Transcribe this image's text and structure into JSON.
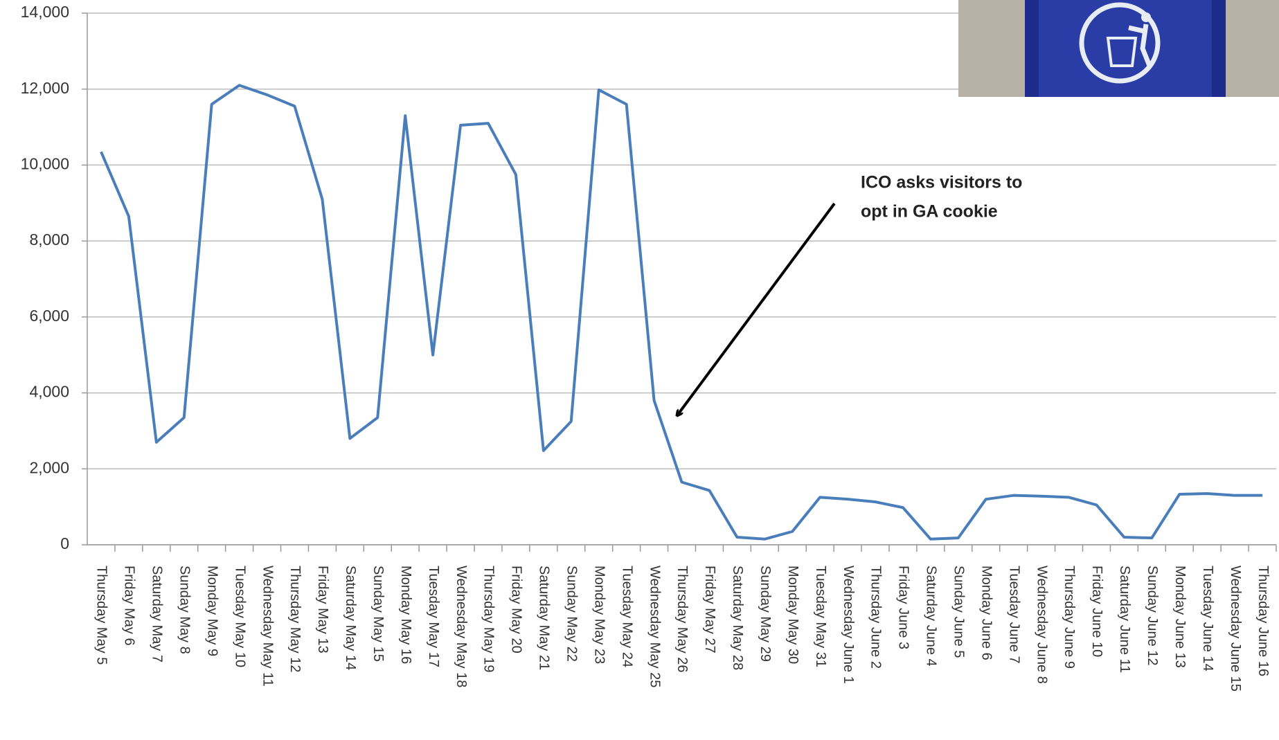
{
  "chart_data": {
    "type": "line",
    "categories": [
      "Thursday May 5",
      "Friday May 6",
      "Saturday May 7",
      "Sunday May 8",
      "Monday May 9",
      "Tuesday May 10",
      "Wednesday May 11",
      "Thursday May 12",
      "Friday May 13",
      "Saturday May 14",
      "Sunday May 15",
      "Monday May 16",
      "Tuesday May 17",
      "Wednesday May 18",
      "Thursday May 19",
      "Friday May 20",
      "Saturday May 21",
      "Sunday May 22",
      "Monday May 23",
      "Tuesday May 24",
      "Wednesday May 25",
      "Thursday May 26",
      "Friday May 27",
      "Saturday May 28",
      "Sunday May 29",
      "Monday May 30",
      "Tuesday May 31",
      "Wednesday June 1",
      "Thursday June 2",
      "Friday June 3",
      "Saturday June 4",
      "Sunday June 5",
      "Monday June 6",
      "Tuesday June 7",
      "Wednesday June 8",
      "Thursday June 9",
      "Friday June 10",
      "Saturday June 11",
      "Sunday June 12",
      "Monday June 13",
      "Tuesday June 14",
      "Wednesday June 15",
      "Thursday June 16"
    ],
    "values": [
      10350,
      8650,
      2700,
      3350,
      11600,
      12100,
      11850,
      11550,
      9100,
      2800,
      3350,
      11300,
      5000,
      11050,
      11100,
      9750,
      2480,
      3250,
      11980,
      11600,
      3800,
      1650,
      1430,
      200,
      150,
      350,
      1250,
      1200,
      1130,
      980,
      150,
      180,
      1200,
      1300,
      1280,
      1250,
      1050,
      200,
      180,
      1330,
      1350,
      1300,
      1300
    ],
    "color": "#4a7ebb",
    "ylim": [
      0,
      14000
    ],
    "yticks": [
      0,
      {
        "value": 2000,
        "label": "2,000"
      },
      {
        "value": 4000,
        "label": "4,000"
      },
      {
        "value": 6000,
        "label": "6,000"
      },
      {
        "value": 8000,
        "label": "8,000"
      },
      {
        "value": 10000,
        "label": "10,000"
      },
      {
        "value": 12000,
        "label": "12,000"
      },
      {
        "value": 14000,
        "label": "14,000"
      }
    ],
    "grid": true,
    "annotation": [
      "ICO asks visitors to",
      "opt in GA cookie"
    ]
  }
}
